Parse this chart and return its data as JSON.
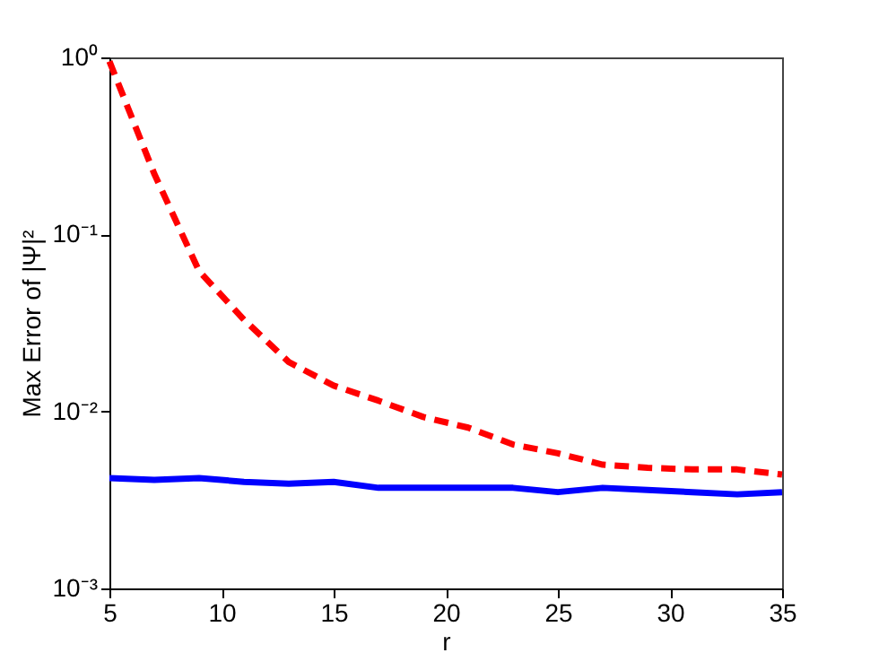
{
  "chart_data": {
    "type": "line",
    "xlabel": "r",
    "ylabel": "Max Error of |Ψ|²",
    "log": "y",
    "grid": false,
    "marker": "none",
    "x": [
      5,
      7,
      9,
      11,
      13,
      15,
      17,
      19,
      21,
      23,
      25,
      27,
      29,
      31,
      33,
      35
    ],
    "series": [
      {
        "color": "#ff0000",
        "line_style": "dashed",
        "values": [
          0.95,
          0.22,
          0.062,
          0.033,
          0.019,
          0.014,
          0.0115,
          0.0093,
          0.0081,
          0.0065,
          0.0058,
          0.005,
          0.0048,
          0.0047,
          0.0047,
          0.0044
        ]
      },
      {
        "color": "#0000ff",
        "line_style": "solid",
        "values": [
          0.0042,
          0.0041,
          0.0042,
          0.004,
          0.0039,
          0.004,
          0.0037,
          0.0037,
          0.0037,
          0.0037,
          0.0035,
          0.0037,
          0.0036,
          0.0035,
          0.0034,
          0.0035
        ]
      }
    ],
    "xlim": [
      5,
      35
    ],
    "xticks": [
      5,
      10,
      15,
      20,
      25,
      30,
      35
    ],
    "ylim": [
      0.001,
      1
    ],
    "yticks": [
      {
        "value": 0.001,
        "label": "10⁻³"
      },
      {
        "value": 0.01,
        "label": "10⁻²"
      },
      {
        "value": 0.1,
        "label": "10⁻¹"
      },
      {
        "value": 1,
        "label": "10⁰"
      }
    ]
  }
}
